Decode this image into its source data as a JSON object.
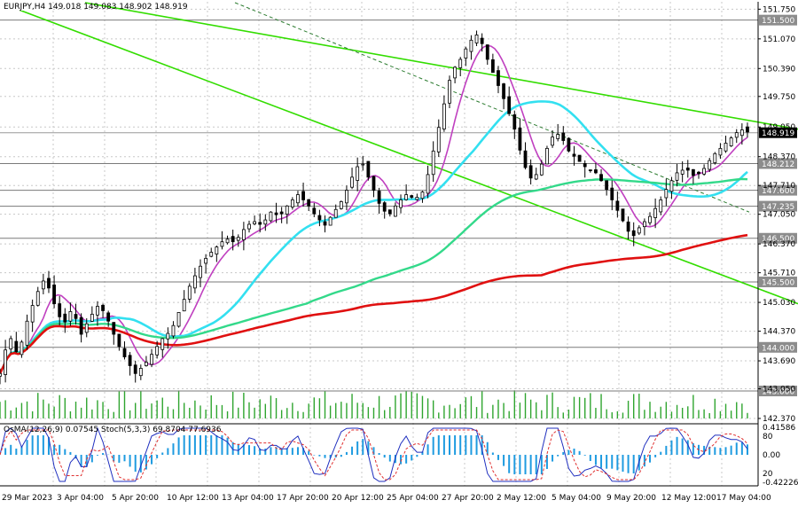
{
  "chart_data": {
    "type": "candlestick",
    "symbol_line": "EURJPY,H4  149.018 149.083 148.902 148.919",
    "price_axis": {
      "ylim": [
        142.37,
        151.92
      ],
      "ticks": [
        "151.750",
        "151.070",
        "150.390",
        "149.750",
        "149.050",
        "148.370",
        "147.710",
        "147.050",
        "146.370",
        "145.710",
        "145.030",
        "144.370",
        "143.690",
        "143.050",
        "142.370"
      ]
    },
    "level_labels": [
      {
        "text": "151.500",
        "value": 151.5,
        "style": "gray"
      },
      {
        "text": "148.919",
        "value": 148.919,
        "style": "current"
      },
      {
        "text": "148.212",
        "value": 148.212,
        "style": "gray"
      },
      {
        "text": "147.600",
        "value": 147.6,
        "style": "gray"
      },
      {
        "text": "147.235",
        "value": 147.235,
        "style": "gray"
      },
      {
        "text": "146.500",
        "value": 146.5,
        "style": "gray"
      },
      {
        "text": "145.500",
        "value": 145.5,
        "style": "gray"
      },
      {
        "text": "144.000",
        "value": 144.0,
        "style": "gray"
      },
      {
        "text": "143.000",
        "value": 143.0,
        "style": "gray"
      }
    ],
    "time_labels": [
      "29 Mar 2023",
      "3 Apr 04:00",
      "5 Apr 20:00",
      "10 Apr 12:00",
      "13 Apr 04:00",
      "17 Apr 20:00",
      "20 Apr 12:00",
      "25 Apr 04:00",
      "27 Apr 20:00",
      "2 May 12:00",
      "5 May 04:00",
      "9 May 20:00",
      "12 May 12:00",
      "17 May 04:00"
    ],
    "close_path": [
      [
        0,
        143.4
      ],
      [
        5,
        144.3
      ],
      [
        10,
        143.8
      ],
      [
        15,
        144.6
      ],
      [
        20,
        145.2
      ],
      [
        25,
        145.6
      ],
      [
        30,
        145.0
      ],
      [
        35,
        144.5
      ],
      [
        40,
        144.9
      ],
      [
        45,
        144.3
      ],
      [
        50,
        144.7
      ],
      [
        55,
        145.0
      ],
      [
        60,
        144.6
      ],
      [
        65,
        144.1
      ],
      [
        70,
        143.7
      ],
      [
        75,
        143.4
      ],
      [
        80,
        143.6
      ],
      [
        85,
        143.9
      ],
      [
        90,
        144.2
      ],
      [
        95,
        144.4
      ],
      [
        100,
        144.9
      ],
      [
        105,
        145.4
      ],
      [
        110,
        145.8
      ],
      [
        115,
        146.1
      ],
      [
        120,
        146.3
      ],
      [
        125,
        146.5
      ],
      [
        130,
        146.4
      ],
      [
        135,
        146.7
      ],
      [
        140,
        146.9
      ],
      [
        145,
        146.8
      ],
      [
        150,
        147.1
      ],
      [
        155,
        147.0
      ],
      [
        160,
        147.3
      ],
      [
        165,
        147.5
      ],
      [
        170,
        147.3
      ],
      [
        175,
        147.0
      ],
      [
        180,
        146.8
      ],
      [
        185,
        147.1
      ],
      [
        190,
        147.4
      ],
      [
        195,
        147.9
      ],
      [
        200,
        148.3
      ],
      [
        205,
        147.8
      ],
      [
        210,
        147.3
      ],
      [
        215,
        147.0
      ],
      [
        220,
        147.3
      ],
      [
        225,
        147.5
      ],
      [
        230,
        147.4
      ],
      [
        235,
        147.6
      ],
      [
        240,
        148.5
      ],
      [
        245,
        149.4
      ],
      [
        250,
        150.3
      ],
      [
        255,
        150.6
      ],
      [
        260,
        151.0
      ],
      [
        265,
        151.2
      ],
      [
        270,
        150.6
      ],
      [
        275,
        150.1
      ],
      [
        280,
        149.6
      ],
      [
        285,
        149.0
      ],
      [
        290,
        148.2
      ],
      [
        295,
        147.8
      ],
      [
        300,
        148.2
      ],
      [
        305,
        148.8
      ],
      [
        310,
        148.9
      ],
      [
        315,
        148.5
      ],
      [
        320,
        148.3
      ],
      [
        325,
        148.1
      ],
      [
        330,
        148.0
      ],
      [
        335,
        147.7
      ],
      [
        340,
        147.3
      ],
      [
        345,
        146.9
      ],
      [
        350,
        146.5
      ],
      [
        355,
        146.8
      ],
      [
        360,
        147.0
      ],
      [
        365,
        147.3
      ],
      [
        370,
        147.7
      ],
      [
        375,
        148.0
      ],
      [
        380,
        148.1
      ],
      [
        385,
        147.9
      ],
      [
        390,
        148.1
      ],
      [
        395,
        148.4
      ],
      [
        400,
        148.6
      ],
      [
        405,
        148.8
      ],
      [
        410,
        149.0
      ],
      [
        415,
        148.919
      ]
    ],
    "moving_averages": [
      {
        "period": "fast",
        "color": "#c040c0"
      },
      {
        "period": "mid",
        "color": "#33e0f0"
      },
      {
        "period": "slow",
        "color": "#33d98a"
      },
      {
        "period": "long",
        "color": "#e01010"
      }
    ],
    "trend_lines": [
      {
        "color": "#33dd00",
        "from": [
          96,
          151.9
        ],
        "to": [
          900,
          149.0
        ]
      },
      {
        "color": "#33dd00",
        "from": [
          0,
          151.9
        ],
        "to": [
          900,
          145.0
        ]
      },
      {
        "color": "#2e7d32",
        "style": "dashed",
        "from": [
          265,
          151.9
        ],
        "to": [
          845,
          147.1
        ]
      }
    ],
    "oscillator": {
      "title": "OsMA(12,26,9) 0.07545  Stoch(5,3,3) 69.8704 77.6936",
      "ticks": [
        "0.41586",
        "80",
        "0.00",
        "20",
        "-0.42226"
      ],
      "ylim": [
        -0.42226,
        0.41586
      ]
    }
  }
}
